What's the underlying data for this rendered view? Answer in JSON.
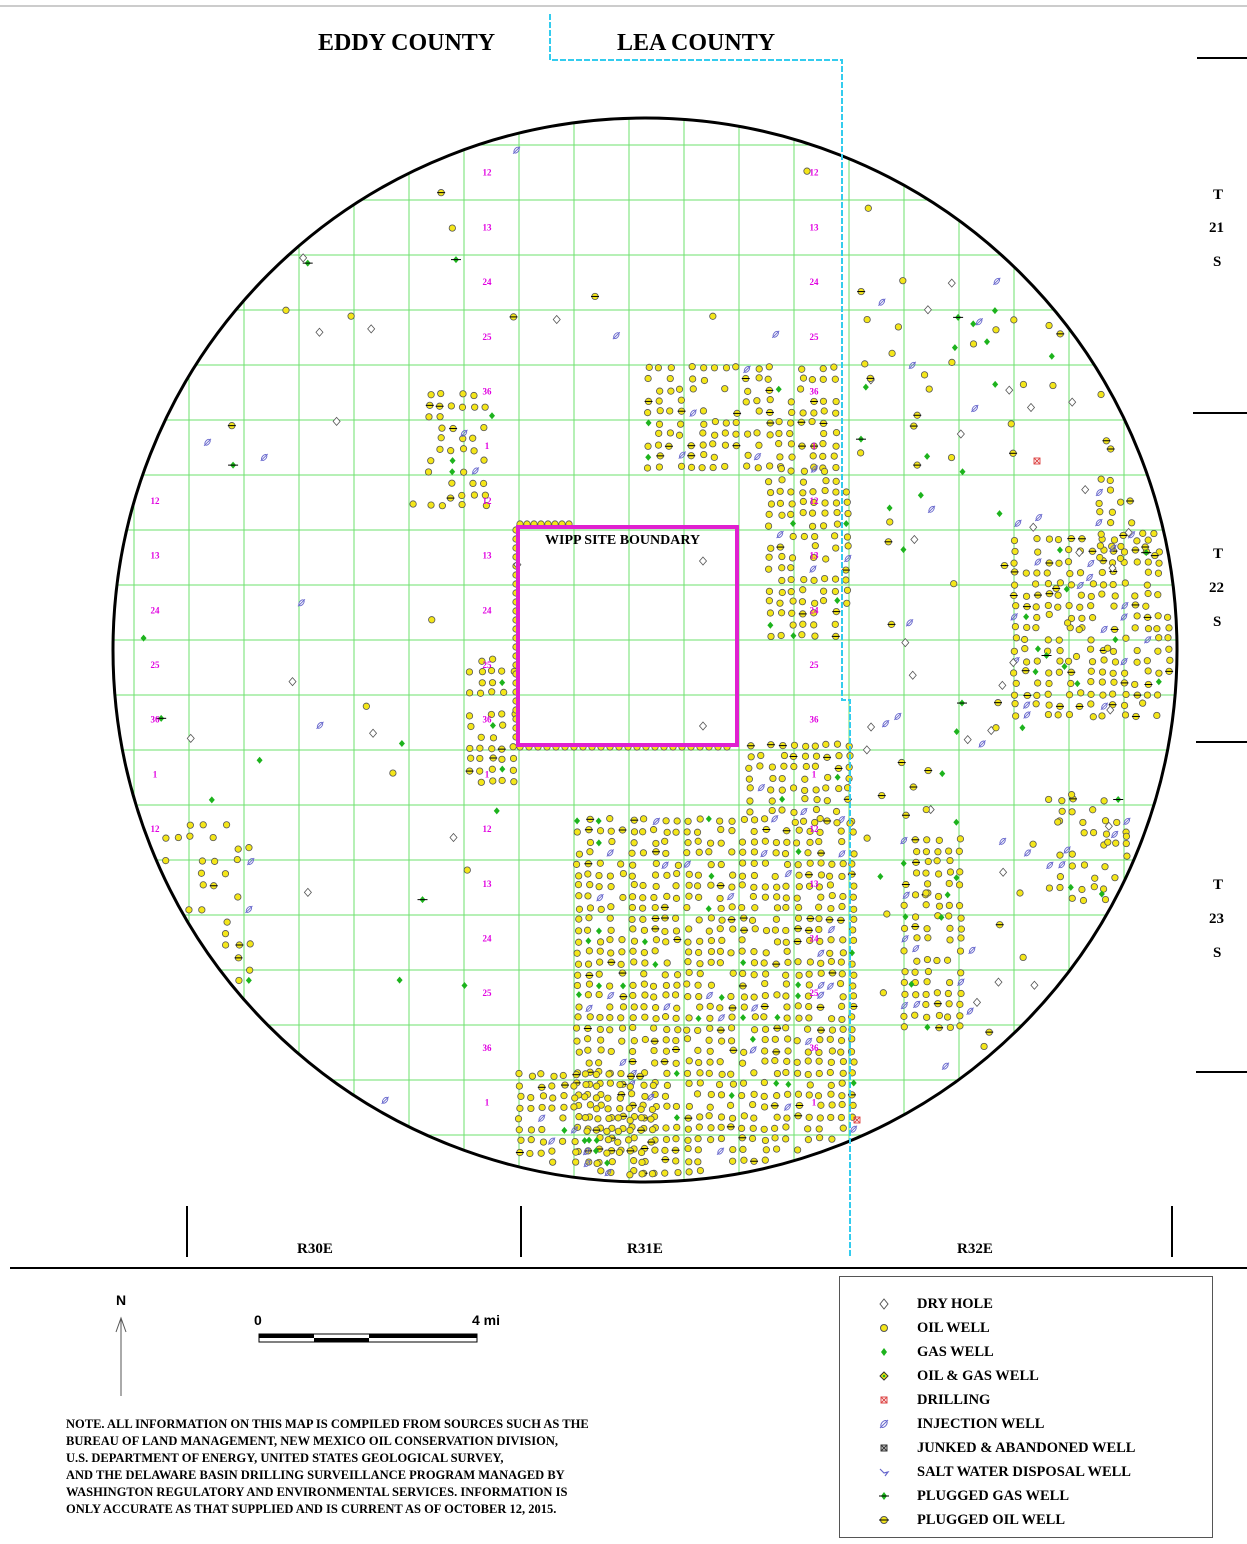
{
  "counties": {
    "west": "EDDY COUNTY",
    "east": "LEA COUNTY"
  },
  "townships": [
    {
      "t": "T",
      "num": "21",
      "s": "S"
    },
    {
      "t": "T",
      "num": "22",
      "s": "S"
    },
    {
      "t": "T",
      "num": "23",
      "s": "S"
    }
  ],
  "ranges": [
    "R30E",
    "R31E",
    "R32E"
  ],
  "site_label": "WIPP SITE BOUNDARY",
  "section_numbers": [
    "1",
    "12",
    "13",
    "24",
    "25",
    "36"
  ],
  "north_label": "N",
  "scale": {
    "start": "0",
    "end": "4 mi"
  },
  "note_lines": [
    "NOTE.  ALL INFORMATION ON THIS MAP IS COMPILED FROM SOURCES SUCH AS THE",
    "BUREAU OF LAND MANAGEMENT,  NEW MEXICO OIL CONSERVATION DIVISION,",
    "U.S. DEPARTMENT OF ENERGY, UNITED STATES GEOLOGICAL SURVEY,",
    "AND THE DELAWARE BASIN DRILLING SURVEILLANCE PROGRAM MANAGED BY",
    "WASHINGTON REGULATORY AND ENVIRONMENTAL SERVICES.  INFORMATION IS",
    "ONLY ACCURATE AS THAT SUPPLIED AND IS CURRENT AS OF OCTOBER 12, 2015."
  ],
  "legend": [
    {
      "icon": "dry-hole-icon",
      "label": "DRY HOLE"
    },
    {
      "icon": "oil-well-icon",
      "label": "OIL WELL"
    },
    {
      "icon": "gas-well-icon",
      "label": "GAS WELL"
    },
    {
      "icon": "oil-gas-well-icon",
      "label": "OIL & GAS WELL"
    },
    {
      "icon": "drilling-icon",
      "label": "DRILLING"
    },
    {
      "icon": "injection-well-icon",
      "label": "INJECTION WELL"
    },
    {
      "icon": "junked-abandoned-well-icon",
      "label": "JUNKED & ABANDONED WELL"
    },
    {
      "icon": "salt-water-disposal-well-icon",
      "label": "SALT WATER DISPOSAL WELL"
    },
    {
      "icon": "plugged-gas-well-icon",
      "label": "PLUGGED GAS WELL"
    },
    {
      "icon": "plugged-oil-well-icon",
      "label": "PLUGGED OIL WELL"
    }
  ],
  "colors": {
    "grid": "#6ee06e",
    "county_line": "#33ccee",
    "site_boundary": "#e020d0",
    "section_number": "#e000e0",
    "oil_well_fill": "#f4e619",
    "gas_well": "#1db31d",
    "injection": "#6666cc",
    "drilling": "#dd4444"
  }
}
